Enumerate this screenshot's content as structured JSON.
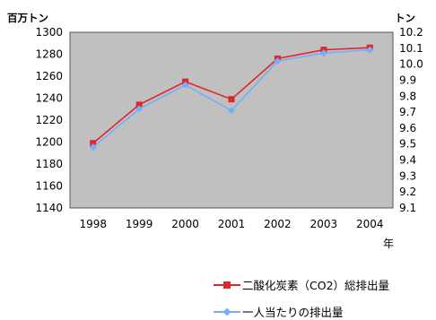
{
  "chart_data": {
    "type": "line",
    "title": "",
    "x": [
      "1998",
      "1999",
      "2000",
      "2001",
      "2002",
      "2003",
      "2004"
    ],
    "xlabel": "年",
    "y_left": {
      "label": "百万トン",
      "lim": [
        1140,
        1300
      ],
      "step": 20
    },
    "y_right": {
      "label": "トン",
      "lim": [
        9.1,
        10.2
      ],
      "step": 0.1
    },
    "plot_background": "#c0c0c0",
    "grid": false,
    "legend_position": "bottom-right",
    "series": [
      {
        "name": "二酸化炭素（CO2）総排出量",
        "axis": "left",
        "color": "#e0262b",
        "marker": "square",
        "values": [
          1199,
          1234,
          1255,
          1239,
          1276,
          1284,
          1286
        ]
      },
      {
        "name": "一人当たりの排出量",
        "axis": "right",
        "color": "#74aefc",
        "marker": "diamond",
        "values": [
          9.48,
          9.72,
          9.87,
          9.71,
          10.02,
          10.07,
          10.09
        ]
      }
    ]
  }
}
